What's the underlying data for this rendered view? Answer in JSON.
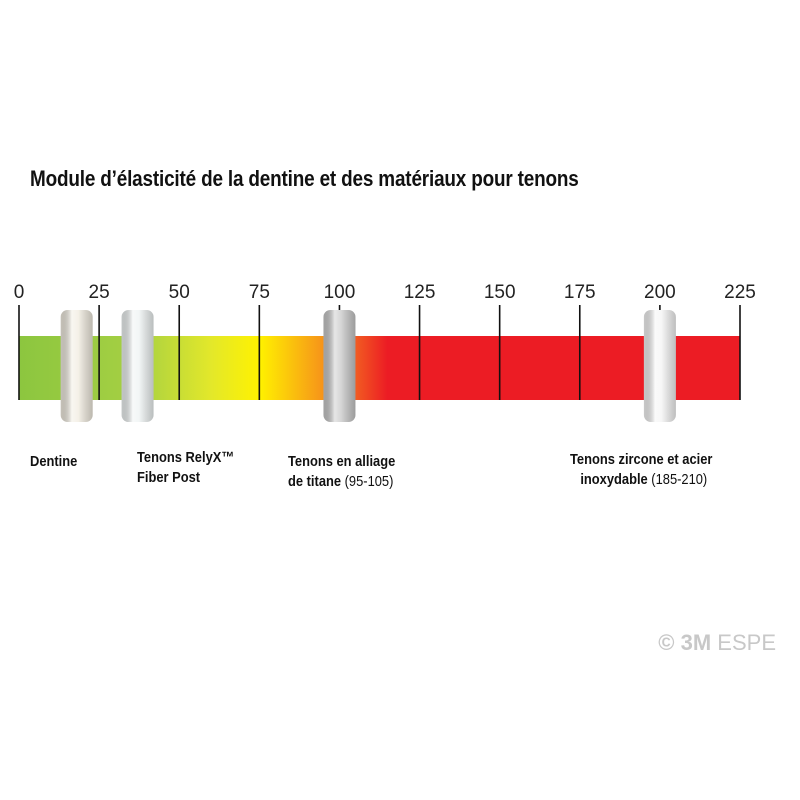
{
  "chart_data": {
    "type": "scale",
    "title": "Module d’élasticité de la dentine et des matériaux pour tenons",
    "xlim": [
      0,
      225
    ],
    "ticks": [
      "0",
      "25",
      "50",
      "75",
      "100",
      "125",
      "150",
      "175",
      "200",
      "225"
    ],
    "tick_values": [
      0,
      25,
      50,
      75,
      100,
      125,
      150,
      175,
      200,
      225
    ],
    "gradient": [
      {
        "value": 0,
        "color": "#8cc63f"
      },
      {
        "value": 37,
        "color": "#a6d043"
      },
      {
        "value": 60,
        "color": "#e3e82a"
      },
      {
        "value": 75,
        "color": "#fff200"
      },
      {
        "value": 100,
        "color": "#f47b20"
      },
      {
        "value": 115,
        "color": "#ec1c24"
      },
      {
        "value": 225,
        "color": "#ec1c24"
      }
    ],
    "materials": [
      {
        "name": "Dentine",
        "range": "",
        "value": 18,
        "post_color": "#f1ece0"
      },
      {
        "name": "Tenons RelyX™ Fiber Post",
        "name_line1": "Tenons RelyX™",
        "name_line2": "Fiber Post",
        "range": "",
        "value": 37,
        "post_color": "#eef3f3"
      },
      {
        "name": "Tenons en alliage de titane",
        "name_line1": "Tenons en alliage",
        "name_line2": "de titane",
        "range": "(95-105)",
        "value": 100,
        "post_color": "#c8c8c8"
      },
      {
        "name": "Tenons zircone et acier inoxydable",
        "name_line1": "Tenons zircone et acier",
        "name_line2": "inoxydable",
        "range": "(185-210)",
        "value": 200,
        "post_color": "#f4f4f4"
      }
    ]
  },
  "copyright": {
    "symbol": "©",
    "brand": "3M",
    "suffix": "ESPE"
  }
}
